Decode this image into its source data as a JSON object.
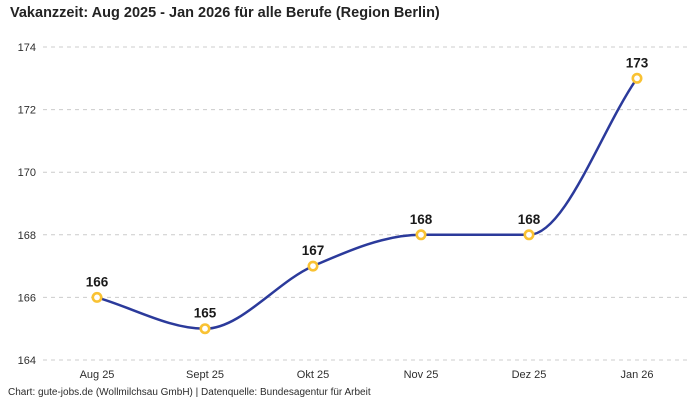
{
  "title": "Vakanzzeit: Aug 2025 - Jan 2026 für alle Berufe (Region Berlin)",
  "footer": "Chart: gute-jobs.de (Wollmilchsau GmbH) | Datenquelle: Bundesagentur für Arbeit",
  "colors": {
    "line": "#2b3a9b",
    "marker": "#f9c233",
    "marker_fill": "#ffffff",
    "grid": "#cccccc",
    "axis_text": "#2e2e2e",
    "data_label_text": "#1a1a1a",
    "title_text": "#232323",
    "background": "#ffffff"
  },
  "chart_data": {
    "type": "line",
    "title": "Vakanzzeit: Aug 2025 - Jan 2026 für alle Berufe (Region Berlin)",
    "series": [
      {
        "name": "Vakanzzeit",
        "values": [
          166,
          165,
          167,
          168,
          168,
          173
        ]
      }
    ],
    "categories": [
      "Aug 25",
      "Sept 25",
      "Okt 25",
      "Nov 25",
      "Dez 25",
      "Jan 26"
    ],
    "xlabel": "",
    "ylabel": "",
    "ylim": [
      164,
      174
    ],
    "yticks": [
      164,
      166,
      168,
      170,
      172,
      174
    ],
    "grid": "horizontal-dashed",
    "legend_position": "none",
    "data_labels": true,
    "interpolation": "monotone-smooth",
    "credit": "Chart: gute-jobs.de (Wollmilchsau GmbH) | Datenquelle: Bundesagentur für Arbeit"
  }
}
